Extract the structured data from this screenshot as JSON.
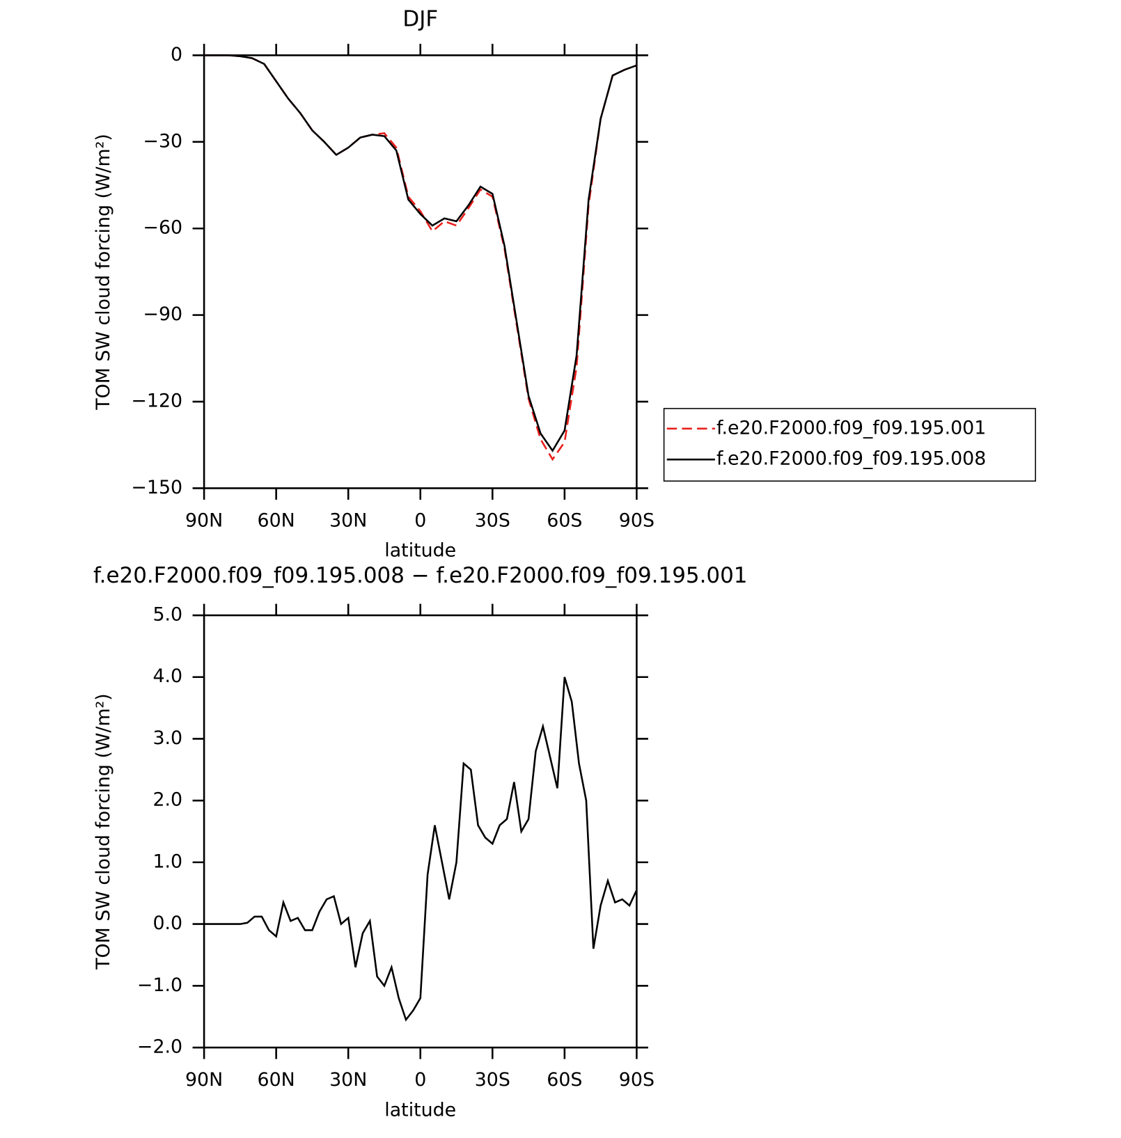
{
  "chart_data": [
    {
      "type": "line",
      "title": "DJF",
      "xlabel": "latitude",
      "ylabel": "TOM SW cloud forcing (W/m²)",
      "xlim": [
        90,
        -90
      ],
      "xticks": [
        {
          "value": 90,
          "label": "90N"
        },
        {
          "value": 60,
          "label": "60N"
        },
        {
          "value": 30,
          "label": "30N"
        },
        0,
        {
          "value": -30,
          "label": "30S"
        },
        {
          "value": -60,
          "label": "60S"
        },
        {
          "value": -90,
          "label": "90S"
        }
      ],
      "ylim": [
        -150,
        0
      ],
      "yticks": [
        0,
        {
          "value": -30,
          "label": "−30"
        },
        {
          "value": -60,
          "label": "−60"
        },
        {
          "value": -90,
          "label": "−90"
        },
        {
          "value": -120,
          "label": "−120"
        },
        {
          "value": -150,
          "label": "−150"
        }
      ],
      "legend": "right",
      "x": [
        90,
        85,
        80,
        75,
        70,
        65,
        60,
        55,
        50,
        45,
        40,
        35,
        30,
        25,
        20,
        15,
        10,
        5,
        0,
        -5,
        -10,
        -15,
        -20,
        -25,
        -30,
        -35,
        -40,
        -45,
        -50,
        -55,
        -60,
        -65,
        -70,
        -75,
        -80,
        -85,
        -90
      ],
      "series": [
        {
          "name": "f.e20.F2000.f09_f09.195.001",
          "color": "#e8201c",
          "dash": true,
          "values": [
            0,
            0,
            0,
            -0.3,
            -1,
            -3,
            -9,
            -15,
            -20,
            -26,
            -30,
            -34.5,
            -32,
            -28.5,
            -27.5,
            -27,
            -32,
            -49,
            -54,
            -61,
            -57.5,
            -59,
            -53,
            -46.5,
            -49,
            -67,
            -93,
            -119,
            -133,
            -140,
            -134,
            -108,
            -52,
            -22,
            -7,
            -5,
            -3.5
          ]
        },
        {
          "name": "f.e20.F2000.f09_f09.195.008",
          "color": "#000000",
          "dash": false,
          "values": [
            0,
            0,
            0,
            -0.3,
            -1,
            -3,
            -9,
            -15,
            -20,
            -26,
            -30,
            -34.5,
            -32,
            -28.5,
            -27.5,
            -28,
            -33,
            -50,
            -55,
            -59,
            -56.5,
            -57.5,
            -52,
            -45.5,
            -48,
            -66,
            -92,
            -118,
            -131,
            -137,
            -130,
            -104,
            -50,
            -22,
            -7,
            -5,
            -3.5
          ]
        }
      ]
    },
    {
      "type": "line",
      "title": "f.e20.F2000.f09_f09.195.008 − f.e20.F2000.f09_f09.195.001",
      "xlabel": "latitude",
      "ylabel": "TOM SW cloud forcing (W/m²)",
      "xlim": [
        90,
        -90
      ],
      "xticks": [
        {
          "value": 90,
          "label": "90N"
        },
        {
          "value": 60,
          "label": "60N"
        },
        {
          "value": 30,
          "label": "30N"
        },
        0,
        {
          "value": -30,
          "label": "30S"
        },
        {
          "value": -60,
          "label": "60S"
        },
        {
          "value": -90,
          "label": "90S"
        }
      ],
      "ylim": [
        -2,
        5
      ],
      "yticks": [
        {
          "value": 5,
          "label": "5.0"
        },
        {
          "value": 4,
          "label": "4.0"
        },
        {
          "value": 3,
          "label": "3.0"
        },
        {
          "value": 2,
          "label": "2.0"
        },
        {
          "value": 1,
          "label": "1.0"
        },
        {
          "value": 0,
          "label": "0.0"
        },
        {
          "value": -1,
          "label": "−1.0"
        },
        {
          "value": -2,
          "label": "−2.0"
        }
      ],
      "x": [
        90,
        87,
        84,
        81,
        78,
        75,
        72,
        69,
        66,
        63,
        60,
        57,
        54,
        51,
        48,
        45,
        42,
        39,
        36,
        33,
        30,
        27,
        24,
        21,
        18,
        15,
        12,
        9,
        6,
        3,
        0,
        -3,
        -6,
        -9,
        -12,
        -15,
        -18,
        -21,
        -24,
        -27,
        -30,
        -33,
        -36,
        -39,
        -42,
        -45,
        -48,
        -51,
        -54,
        -57,
        -60,
        -63,
        -66,
        -69,
        -72,
        -75,
        -78,
        -81,
        -84,
        -87,
        -90
      ],
      "color": "#000000",
      "values": [
        0,
        0,
        0,
        0,
        0,
        0,
        0.02,
        0.12,
        0.12,
        -0.1,
        -0.2,
        0.35,
        0.05,
        0.1,
        -0.1,
        -0.1,
        0.2,
        0.4,
        0.45,
        0,
        0.1,
        -0.7,
        -0.15,
        0.05,
        -0.85,
        -1.0,
        -0.7,
        -1.2,
        -1.55,
        -1.4,
        -1.2,
        0.8,
        1.6,
        1.0,
        0.4,
        1.0,
        2.6,
        2.5,
        1.6,
        1.4,
        1.3,
        1.6,
        1.7,
        2.3,
        1.5,
        1.7,
        2.8,
        3.2,
        2.7,
        2.2,
        4.0,
        3.6,
        2.6,
        2.0,
        -0.4,
        0.3,
        0.7,
        0.35,
        0.4,
        0.3,
        0.55
      ]
    }
  ]
}
